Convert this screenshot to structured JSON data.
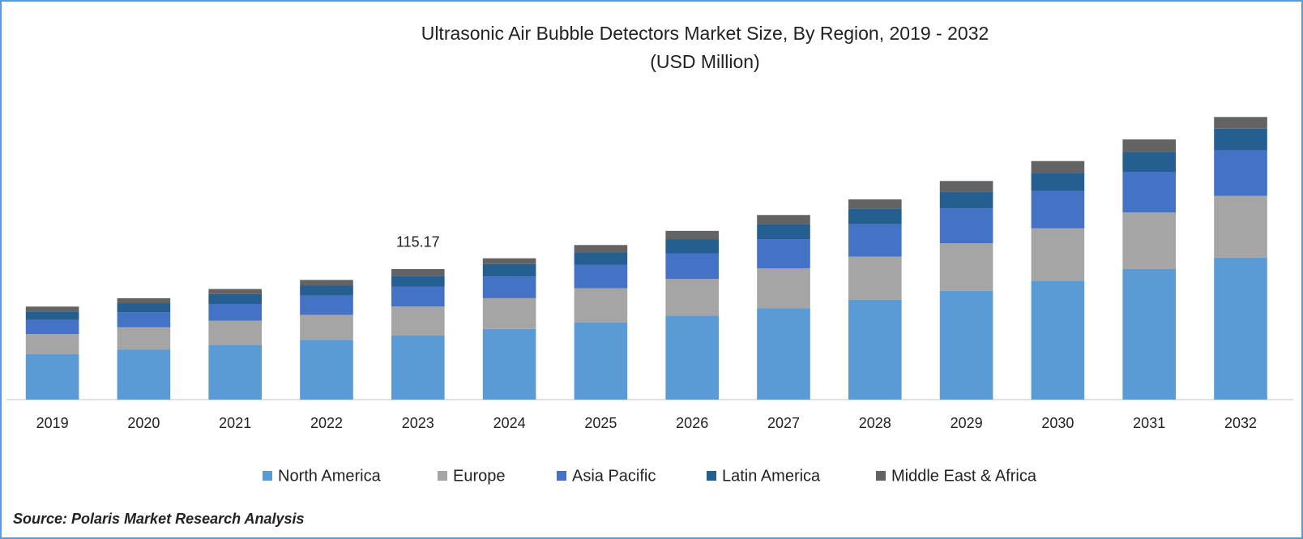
{
  "chart_data": {
    "type": "stacked_bar",
    "title": "Ultrasonic Air Bubble Detectors Market Size, By Region, 2019 - 2032",
    "subtitle": "(USD Million)",
    "categories": [
      "2019",
      "2020",
      "2021",
      "2022",
      "2023",
      "2024",
      "2025",
      "2026",
      "2027",
      "2028",
      "2029",
      "2030",
      "2031",
      "2032"
    ],
    "series": [
      {
        "name": "North America",
        "color": "#5b9bd5",
        "values": [
          40.3,
          44.0,
          48.4,
          52.8,
          56.5,
          62.4,
          68.2,
          74.1,
          80.7,
          88.0,
          96.1,
          104.9,
          115.2,
          125.4
        ]
      },
      {
        "name": "Europe",
        "color": "#a5a5a5",
        "values": [
          17.6,
          19.8,
          21.3,
          22.0,
          25.7,
          27.1,
          30.1,
          32.3,
          35.2,
          38.1,
          41.8,
          46.2,
          49.9,
          54.3
        ]
      },
      {
        "name": "Asia Pacific",
        "color": "#4472c4",
        "values": [
          12.5,
          13.2,
          14.7,
          16.9,
          17.6,
          19.1,
          20.5,
          22.7,
          25.7,
          28.6,
          30.8,
          33.0,
          35.9,
          40.3
        ]
      },
      {
        "name": "Latin America",
        "color": "#255e91",
        "values": [
          7.3,
          8.1,
          8.8,
          8.8,
          9.5,
          11.0,
          11.0,
          12.5,
          13.2,
          13.9,
          14.7,
          16.1,
          17.6,
          19.1
        ]
      },
      {
        "name": "Middle East & Africa",
        "color": "#636363",
        "values": [
          4.4,
          4.4,
          4.4,
          5.1,
          5.87,
          5.1,
          6.6,
          7.3,
          8.1,
          8.1,
          9.5,
          10.3,
          11.0,
          10.3
        ]
      }
    ],
    "total_labels": [
      null,
      null,
      null,
      null,
      115.17,
      null,
      null,
      null,
      null,
      null,
      null,
      null,
      null,
      null
    ],
    "source": "Source: Polaris Market Research Analysis"
  }
}
